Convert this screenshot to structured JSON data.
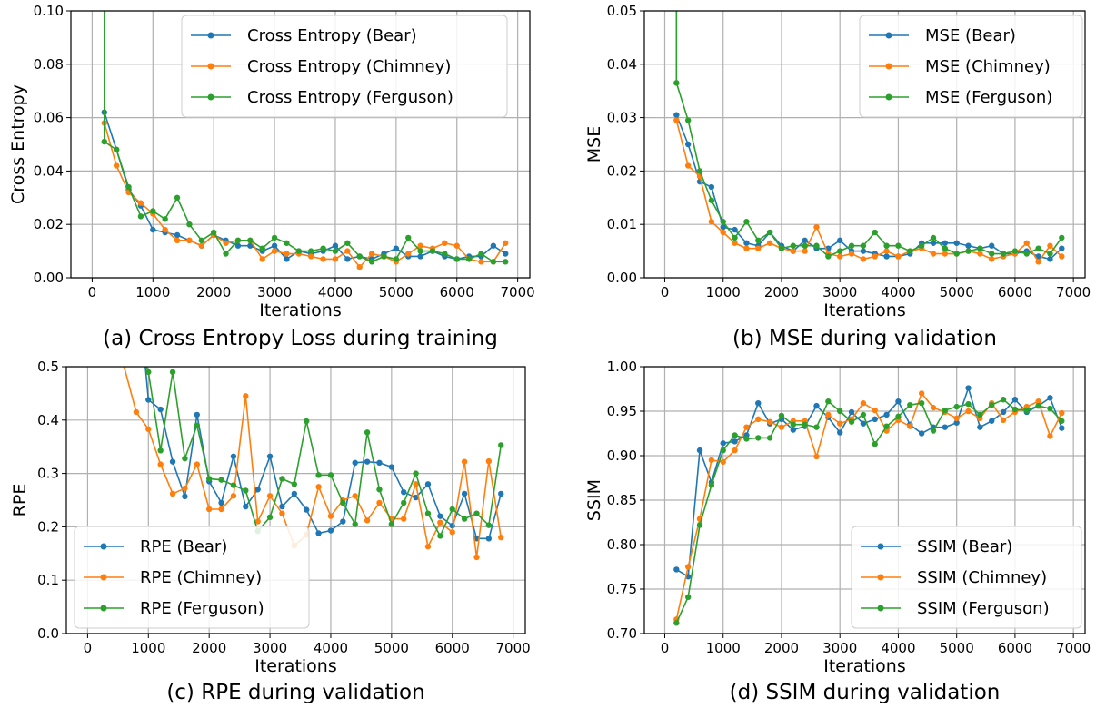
{
  "colors": {
    "Bear": "#1f77b4",
    "Chimney": "#ff7f0e",
    "Ferguson": "#2ca02c",
    "grid": "#b0b0b0"
  },
  "chart_data": [
    {
      "type": "line",
      "caption": "(a) Cross Entropy Loss during training",
      "xlabel": "Iterations",
      "ylabel": "Cross Entropy",
      "xlim": [
        -350,
        7200
      ],
      "ylim": [
        0,
        0.1
      ],
      "xticks": [
        0,
        1000,
        2000,
        3000,
        4000,
        5000,
        6000,
        7000
      ],
      "yticks": [
        0.0,
        0.02,
        0.04,
        0.06,
        0.08,
        0.1
      ],
      "ytick_labels": [
        "0.00",
        "0.02",
        "0.04",
        "0.06",
        "0.08",
        "0.10"
      ],
      "grid": true,
      "legend_position": "top-right",
      "x": [
        200,
        400,
        600,
        800,
        1000,
        1200,
        1400,
        1600,
        1800,
        2000,
        2200,
        2400,
        2600,
        2800,
        3000,
        3200,
        3400,
        3600,
        3800,
        4000,
        4200,
        4400,
        4600,
        4800,
        5000,
        5200,
        5400,
        5600,
        5800,
        6000,
        6200,
        6400,
        6600,
        6800
      ],
      "series": [
        {
          "name": "Cross Entropy (Bear)",
          "key": "Bear",
          "lead": 0.062,
          "values": [
            0.062,
            0.048,
            0.033,
            0.027,
            0.018,
            0.017,
            0.016,
            0.014,
            0.012,
            0.016,
            0.014,
            0.012,
            0.012,
            0.01,
            0.012,
            0.007,
            0.01,
            0.009,
            0.01,
            0.012,
            0.007,
            0.008,
            0.007,
            0.009,
            0.011,
            0.008,
            0.008,
            0.01,
            0.008,
            0.007,
            0.008,
            0.008,
            0.012,
            0.009
          ]
        },
        {
          "name": "Cross Entropy (Chimney)",
          "key": "Chimney",
          "lead": 0.058,
          "values": [
            0.058,
            0.042,
            0.032,
            0.028,
            0.024,
            0.018,
            0.014,
            0.014,
            0.012,
            0.016,
            0.013,
            0.014,
            0.014,
            0.007,
            0.01,
            0.009,
            0.009,
            0.008,
            0.007,
            0.007,
            0.01,
            0.004,
            0.009,
            0.008,
            0.006,
            0.009,
            0.012,
            0.011,
            0.013,
            0.012,
            0.007,
            0.006,
            0.006,
            0.013
          ]
        },
        {
          "name": "Cross Entropy (Ferguson)",
          "key": "Ferguson",
          "lead": 0.1,
          "values": [
            0.051,
            0.048,
            0.034,
            0.023,
            0.025,
            0.022,
            0.03,
            0.02,
            0.014,
            0.017,
            0.009,
            0.014,
            0.014,
            0.011,
            0.015,
            0.013,
            0.01,
            0.01,
            0.011,
            0.01,
            0.013,
            0.008,
            0.006,
            0.008,
            0.007,
            0.015,
            0.01,
            0.01,
            0.009,
            0.007,
            0.007,
            0.009,
            0.006,
            0.006
          ]
        }
      ]
    },
    {
      "type": "line",
      "caption": "(b) MSE during validation",
      "xlabel": "Iterations",
      "ylabel": "MSE",
      "xlim": [
        -350,
        7200
      ],
      "ylim": [
        0,
        0.05
      ],
      "xticks": [
        0,
        1000,
        2000,
        3000,
        4000,
        5000,
        6000,
        7000
      ],
      "yticks": [
        0.0,
        0.01,
        0.02,
        0.03,
        0.04,
        0.05
      ],
      "ytick_labels": [
        "0.00",
        "0.01",
        "0.02",
        "0.03",
        "0.04",
        "0.05"
      ],
      "grid": true,
      "legend_position": "top-right",
      "x": [
        200,
        400,
        600,
        800,
        1000,
        1200,
        1400,
        1600,
        1800,
        2000,
        2200,
        2400,
        2600,
        2800,
        3000,
        3200,
        3400,
        3600,
        3800,
        4000,
        4200,
        4400,
        4600,
        4800,
        5000,
        5200,
        5400,
        5600,
        5800,
        6000,
        6200,
        6400,
        6600,
        6800
      ],
      "series": [
        {
          "name": "MSE (Bear)",
          "key": "Bear",
          "values": [
            0.0305,
            0.025,
            0.018,
            0.017,
            0.0095,
            0.009,
            0.0065,
            0.006,
            0.0085,
            0.006,
            0.005,
            0.007,
            0.0055,
            0.0055,
            0.007,
            0.005,
            0.005,
            0.0045,
            0.004,
            0.004,
            0.0045,
            0.0065,
            0.0065,
            0.0065,
            0.0065,
            0.006,
            0.0055,
            0.006,
            0.0045,
            0.0045,
            0.005,
            0.004,
            0.0035,
            0.0055
          ]
        },
        {
          "name": "MSE (Chimney)",
          "key": "Chimney",
          "values": [
            0.0295,
            0.021,
            0.019,
            0.0105,
            0.0085,
            0.0065,
            0.0055,
            0.0055,
            0.0065,
            0.0055,
            0.005,
            0.005,
            0.0095,
            0.0045,
            0.004,
            0.0045,
            0.0035,
            0.004,
            0.005,
            0.004,
            0.005,
            0.0055,
            0.0045,
            0.0045,
            0.0045,
            0.005,
            0.0045,
            0.0035,
            0.004,
            0.0045,
            0.0065,
            0.003,
            0.006,
            0.004
          ]
        },
        {
          "name": "MSE (Ferguson)",
          "key": "Ferguson",
          "lead": 0.05,
          "values": [
            0.0365,
            0.0295,
            0.02,
            0.0145,
            0.0105,
            0.0075,
            0.0105,
            0.007,
            0.0085,
            0.0055,
            0.006,
            0.006,
            0.006,
            0.004,
            0.005,
            0.006,
            0.006,
            0.0085,
            0.006,
            0.006,
            0.005,
            0.006,
            0.0075,
            0.0055,
            0.0045,
            0.005,
            0.0055,
            0.0045,
            0.0045,
            0.005,
            0.0045,
            0.0055,
            0.0045,
            0.0075
          ]
        }
      ]
    },
    {
      "type": "line",
      "caption": "(c) RPE during validation",
      "xlabel": "Iterations",
      "ylabel": "RPE",
      "xlim": [
        -350,
        7200
      ],
      "ylim": [
        0,
        0.5
      ],
      "xticks": [
        0,
        1000,
        2000,
        3000,
        4000,
        5000,
        6000,
        7000
      ],
      "yticks": [
        0.0,
        0.1,
        0.2,
        0.3,
        0.4,
        0.5
      ],
      "ytick_labels": [
        "0.0",
        "0.1",
        "0.2",
        "0.3",
        "0.4",
        "0.5"
      ],
      "grid": true,
      "legend_position": "bottom-left",
      "x": [
        1000,
        1200,
        1400,
        1600,
        1800,
        2000,
        2200,
        2400,
        2600,
        2800,
        3000,
        3200,
        3400,
        3600,
        3800,
        4000,
        4200,
        4400,
        4600,
        4800,
        5000,
        5200,
        5400,
        5600,
        5800,
        6000,
        6200,
        6400,
        6600,
        6800
      ],
      "series": [
        {
          "name": "RPE (Bear)",
          "key": "Bear",
          "lead": 0.5,
          "lead_x": 950,
          "values": [
            0.438,
            0.42,
            0.322,
            0.257,
            0.41,
            0.285,
            0.245,
            0.332,
            0.238,
            0.27,
            0.332,
            0.238,
            0.262,
            0.232,
            0.188,
            0.193,
            0.21,
            0.32,
            0.322,
            0.32,
            0.312,
            0.265,
            0.255,
            0.28,
            0.22,
            0.202,
            0.262,
            0.178,
            0.178,
            0.262
          ]
        },
        {
          "name": "RPE (Chimney)",
          "key": "Chimney",
          "lead": 0.5,
          "lead_x": 600,
          "prefix_x": 800,
          "prefix": 0.415,
          "values": [
            0.383,
            0.317,
            0.262,
            0.272,
            0.317,
            0.233,
            0.233,
            0.258,
            0.445,
            0.21,
            0.258,
            0.225,
            0.165,
            0.185,
            0.275,
            0.22,
            0.25,
            0.258,
            0.212,
            0.245,
            0.215,
            0.215,
            0.28,
            0.163,
            0.208,
            0.19,
            0.322,
            0.143,
            0.323,
            0.18
          ]
        },
        {
          "name": "RPE (Ferguson)",
          "key": "Ferguson",
          "lead": 0.5,
          "lead_x": 970,
          "values": [
            0.49,
            0.343,
            0.49,
            0.328,
            0.39,
            0.29,
            0.288,
            0.278,
            0.268,
            0.192,
            0.218,
            0.29,
            0.28,
            0.398,
            0.297,
            0.297,
            0.245,
            0.205,
            0.377,
            0.27,
            0.205,
            0.245,
            0.3,
            0.225,
            0.183,
            0.233,
            0.215,
            0.225,
            0.203,
            0.353
          ]
        }
      ]
    },
    {
      "type": "line",
      "caption": "(d) SSIM during validation",
      "xlabel": "Iterations",
      "ylabel": "SSIM",
      "xlim": [
        -350,
        7200
      ],
      "ylim": [
        0.7,
        1.0
      ],
      "xticks": [
        0,
        1000,
        2000,
        3000,
        4000,
        5000,
        6000,
        7000
      ],
      "yticks": [
        0.7,
        0.75,
        0.8,
        0.85,
        0.9,
        0.95,
        1.0
      ],
      "ytick_labels": [
        "0.70",
        "0.75",
        "0.80",
        "0.85",
        "0.90",
        "0.95",
        "1.00"
      ],
      "grid": true,
      "legend_position": "bottom-right",
      "x": [
        200,
        400,
        600,
        800,
        1000,
        1200,
        1400,
        1600,
        1800,
        2000,
        2200,
        2400,
        2600,
        2800,
        3000,
        3200,
        3400,
        3600,
        3800,
        4000,
        4200,
        4400,
        4600,
        4800,
        5000,
        5200,
        5400,
        5600,
        5800,
        6000,
        6200,
        6400,
        6600,
        6800
      ],
      "series": [
        {
          "name": "SSIM (Bear)",
          "key": "Bear",
          "values": [
            0.772,
            0.764,
            0.906,
            0.87,
            0.914,
            0.916,
            0.923,
            0.959,
            0.936,
            0.941,
            0.929,
            0.933,
            0.956,
            0.943,
            0.926,
            0.949,
            0.936,
            0.941,
            0.946,
            0.961,
            0.935,
            0.925,
            0.932,
            0.932,
            0.937,
            0.976,
            0.932,
            0.939,
            0.949,
            0.963,
            0.949,
            0.956,
            0.965,
            0.931
          ]
        },
        {
          "name": "SSIM (Chimney)",
          "key": "Chimney",
          "values": [
            0.716,
            0.775,
            0.829,
            0.895,
            0.893,
            0.906,
            0.932,
            0.941,
            0.938,
            0.932,
            0.939,
            0.939,
            0.899,
            0.946,
            0.936,
            0.941,
            0.959,
            0.951,
            0.928,
            0.94,
            0.933,
            0.97,
            0.954,
            0.949,
            0.942,
            0.95,
            0.942,
            0.959,
            0.94,
            0.949,
            0.955,
            0.961,
            0.922,
            0.948
          ]
        },
        {
          "name": "SSIM (Ferguson)",
          "key": "Ferguson",
          "values": [
            0.712,
            0.741,
            0.822,
            0.867,
            0.906,
            0.923,
            0.919,
            0.92,
            0.92,
            0.945,
            0.935,
            0.935,
            0.932,
            0.961,
            0.95,
            0.938,
            0.946,
            0.913,
            0.933,
            0.944,
            0.957,
            0.959,
            0.928,
            0.951,
            0.955,
            0.958,
            0.946,
            0.957,
            0.963,
            0.952,
            0.951,
            0.956,
            0.953,
            0.939
          ]
        }
      ]
    }
  ]
}
